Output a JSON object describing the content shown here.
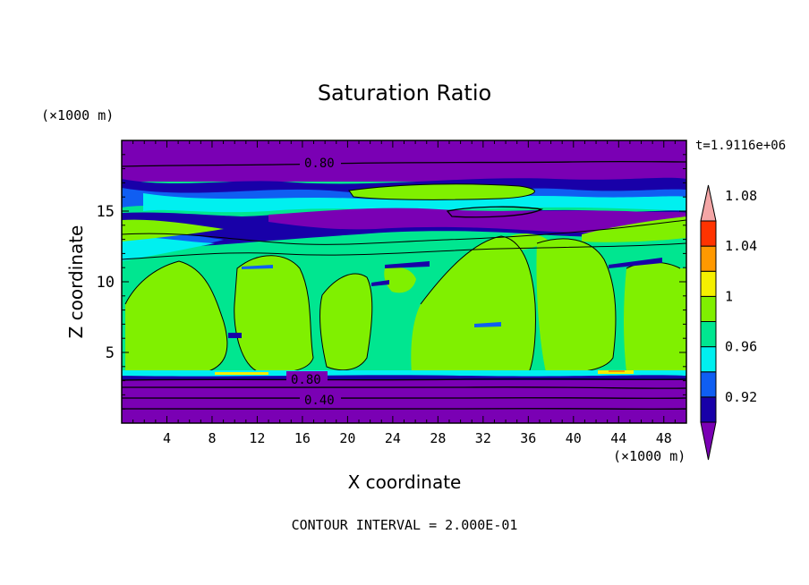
{
  "chart_data": {
    "type": "contour",
    "title": "Saturation Ratio",
    "xlabel": "X coordinate",
    "ylabel": "Z coordinate",
    "x_unit": "(×1000 m)",
    "y_unit": "(×1000 m)",
    "time_label": "t=1.9116e+06",
    "footer": "CONTOUR INTERVAL = 2.000E-01",
    "xlim": [
      0,
      50
    ],
    "ylim": [
      0,
      20
    ],
    "x_ticks": [
      4,
      8,
      12,
      16,
      20,
      24,
      28,
      32,
      36,
      40,
      44,
      48
    ],
    "y_ticks": [
      5,
      10,
      15
    ],
    "colorbar": {
      "levels": [
        "0.92",
        "0.96",
        "1",
        "1.04",
        "1.08"
      ],
      "colors": [
        "#7a00b4",
        "#1800a8",
        "#0f5ef2",
        "#00f0f0",
        "#00e690",
        "#80f000",
        "#f5f000",
        "#ff9900",
        "#ff3300",
        "#f4a6a6"
      ]
    },
    "contour_labels": [
      "0.80",
      "0.80",
      "0.40"
    ],
    "fill_colors": {
      "dark_purple": "#7a00b4",
      "navy": "#1800a8",
      "blue": "#0f5ef2",
      "cyan": "#00f0f0",
      "green": "#00e690",
      "lime": "#80f000",
      "yellow": "#f5f000",
      "orange": "#ff9900"
    }
  }
}
